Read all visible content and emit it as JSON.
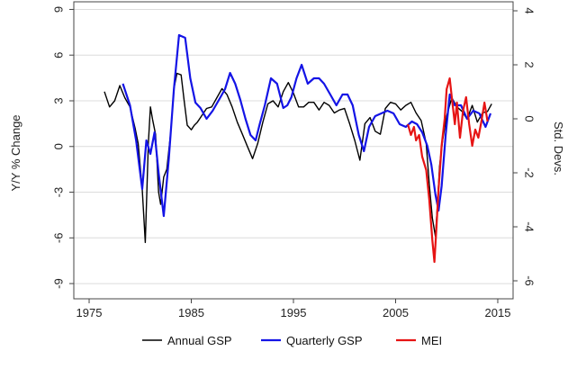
{
  "chart_data": {
    "type": "line",
    "title": "",
    "xlabel": "",
    "ylabel": "Y/Y % Change",
    "y2label": "Std. Devs.",
    "xlim": [
      1973.5,
      2016.5
    ],
    "ylim": [
      -10,
      9.5
    ],
    "y2lim": [
      -6.667,
      4.333
    ],
    "x_ticks": [
      1975,
      1985,
      1995,
      2005,
      2015
    ],
    "y_ticks": [
      9,
      6,
      3,
      0,
      -3,
      -6,
      -9
    ],
    "y_tick_labels": [
      "9",
      "6",
      "3",
      "0",
      "-3",
      "-6",
      "-9"
    ],
    "y2_ticks": [
      4,
      2,
      0,
      -2,
      -4,
      -6
    ],
    "y2_tick_labels": [
      "4",
      "2",
      "0",
      "-2",
      "-4",
      "-6"
    ],
    "grid": true,
    "legend_position": "bottom",
    "series": [
      {
        "name": "Annual GSP",
        "color": "#000000",
        "axis": "left",
        "x": [
          1976.5,
          1977.0,
          1977.5,
          1978.0,
          1978.5,
          1979.0,
          1979.5,
          1979.8,
          1980.2,
          1980.5,
          1980.8,
          1981.0,
          1981.2,
          1981.5,
          1981.8,
          1982.0,
          1982.3,
          1982.6,
          1983.0,
          1983.3,
          1983.6,
          1984.0,
          1984.3,
          1984.6,
          1985.0,
          1985.3,
          1985.6,
          1986.0,
          1986.5,
          1987.0,
          1987.5,
          1988.0,
          1988.5,
          1989.0,
          1989.5,
          1990.0,
          1990.5,
          1991.0,
          1991.5,
          1992.0,
          1992.5,
          1993.0,
          1993.5,
          1994.0,
          1994.5,
          1995.0,
          1995.5,
          1996.0,
          1996.5,
          1997.0,
          1997.5,
          1998.0,
          1998.5,
          1999.0,
          1999.5,
          2000.0,
          2000.5,
          2001.0,
          2001.5,
          2002.0,
          2002.5,
          2003.0,
          2003.5,
          2004.0,
          2004.5,
          2005.0,
          2005.5,
          2006.0,
          2006.5,
          2007.0,
          2007.5,
          2008.0,
          2008.3,
          2008.6,
          2008.9,
          2009.1,
          2009.3,
          2009.6,
          2010.0,
          2010.5,
          2011.0,
          2011.5,
          2012.0,
          2012.5,
          2013.0,
          2013.5,
          2014.0,
          2014.4
        ],
        "y": [
          3.6,
          2.6,
          3.0,
          4.0,
          3.2,
          2.6,
          1.2,
          0.2,
          -2.8,
          -6.3,
          0.2,
          2.6,
          1.8,
          0.8,
          -3.0,
          -3.8,
          -2.0,
          -1.5,
          1.0,
          3.8,
          4.8,
          4.7,
          3.0,
          1.4,
          1.1,
          1.4,
          1.6,
          2.0,
          2.5,
          2.6,
          3.2,
          3.8,
          3.4,
          2.6,
          1.6,
          0.8,
          0.0,
          -0.8,
          0.2,
          1.6,
          2.8,
          3.0,
          2.6,
          3.6,
          4.2,
          3.5,
          2.6,
          2.6,
          2.9,
          2.9,
          2.4,
          2.9,
          2.7,
          2.2,
          2.4,
          2.5,
          1.5,
          0.4,
          -0.9,
          1.5,
          1.9,
          1.0,
          0.8,
          2.5,
          2.9,
          2.8,
          2.4,
          2.7,
          2.9,
          2.2,
          1.7,
          0.2,
          -2.5,
          -4.7,
          -5.9,
          -3.8,
          -1.3,
          0.4,
          2.0,
          3.2,
          2.6,
          2.3,
          1.8,
          2.7,
          1.6,
          2.2,
          2.3,
          2.8
        ]
      },
      {
        "name": "Quarterly GSP",
        "color": "#1414e6",
        "axis": "right",
        "x": [
          1978.3,
          1979.0,
          1979.6,
          1980.2,
          1980.6,
          1981.0,
          1981.4,
          1981.8,
          1982.3,
          1982.8,
          1983.3,
          1983.8,
          1984.4,
          1984.9,
          1985.4,
          1985.9,
          1986.5,
          1987.1,
          1987.7,
          1988.3,
          1988.8,
          1989.3,
          1989.8,
          1990.3,
          1990.8,
          1991.3,
          1991.7,
          1992.2,
          1992.8,
          1993.4,
          1994.0,
          1994.4,
          1994.8,
          1995.3,
          1995.8,
          1996.4,
          1997.0,
          1997.5,
          1998.0,
          1998.6,
          1999.2,
          1999.8,
          2000.3,
          2000.8,
          2001.4,
          2001.9,
          2002.4,
          2003.0,
          2003.6,
          2004.2,
          2004.8,
          2005.4,
          2006.0,
          2006.6,
          2007.1,
          2007.6,
          2008.1,
          2008.5,
          2008.9,
          2009.2,
          2009.5,
          2009.9,
          2010.3,
          2010.8,
          2011.4,
          2012.0,
          2012.6,
          2013.2,
          2013.8,
          2014.3
        ],
        "y": [
          1.3,
          0.5,
          -0.8,
          -2.6,
          -0.8,
          -1.3,
          -0.5,
          -2.0,
          -3.6,
          -1.5,
          1.1,
          3.1,
          3.0,
          1.5,
          0.6,
          0.4,
          0.0,
          0.3,
          0.7,
          1.1,
          1.7,
          1.3,
          0.7,
          0.0,
          -0.6,
          -0.8,
          -0.2,
          0.5,
          1.5,
          1.3,
          0.4,
          0.5,
          0.8,
          1.5,
          2.0,
          1.3,
          1.5,
          1.5,
          1.3,
          0.9,
          0.5,
          0.9,
          0.9,
          0.5,
          -0.6,
          -1.2,
          -0.3,
          0.1,
          0.2,
          0.3,
          0.2,
          -0.2,
          -0.3,
          -0.1,
          -0.2,
          -0.5,
          -1.0,
          -1.7,
          -2.8,
          -3.4,
          -2.5,
          -0.6,
          0.9,
          0.5,
          0.5,
          0.0,
          0.3,
          0.2,
          -0.3,
          0.2
        ]
      },
      {
        "name": "MEI",
        "color": "#e61414",
        "axis": "right",
        "x": [
          2006.2,
          2006.5,
          2006.8,
          2007.0,
          2007.3,
          2007.6,
          2008.0,
          2008.3,
          2008.6,
          2008.8,
          2009.0,
          2009.2,
          2009.5,
          2009.8,
          2010.0,
          2010.3,
          2010.5,
          2010.8,
          2011.0,
          2011.3,
          2011.6,
          2011.9,
          2012.2,
          2012.5,
          2012.8,
          2013.1,
          2013.4,
          2013.7,
          2014.0
        ],
        "y": [
          -0.2,
          -0.6,
          -0.3,
          -0.8,
          -0.6,
          -1.4,
          -1.9,
          -3.0,
          -4.5,
          -5.3,
          -4.0,
          -2.6,
          -1.0,
          0.0,
          1.1,
          1.5,
          0.8,
          -0.2,
          0.6,
          -0.7,
          0.3,
          0.8,
          -0.2,
          -1.0,
          -0.4,
          -0.7,
          -0.1,
          0.6,
          -0.1
        ]
      }
    ]
  }
}
